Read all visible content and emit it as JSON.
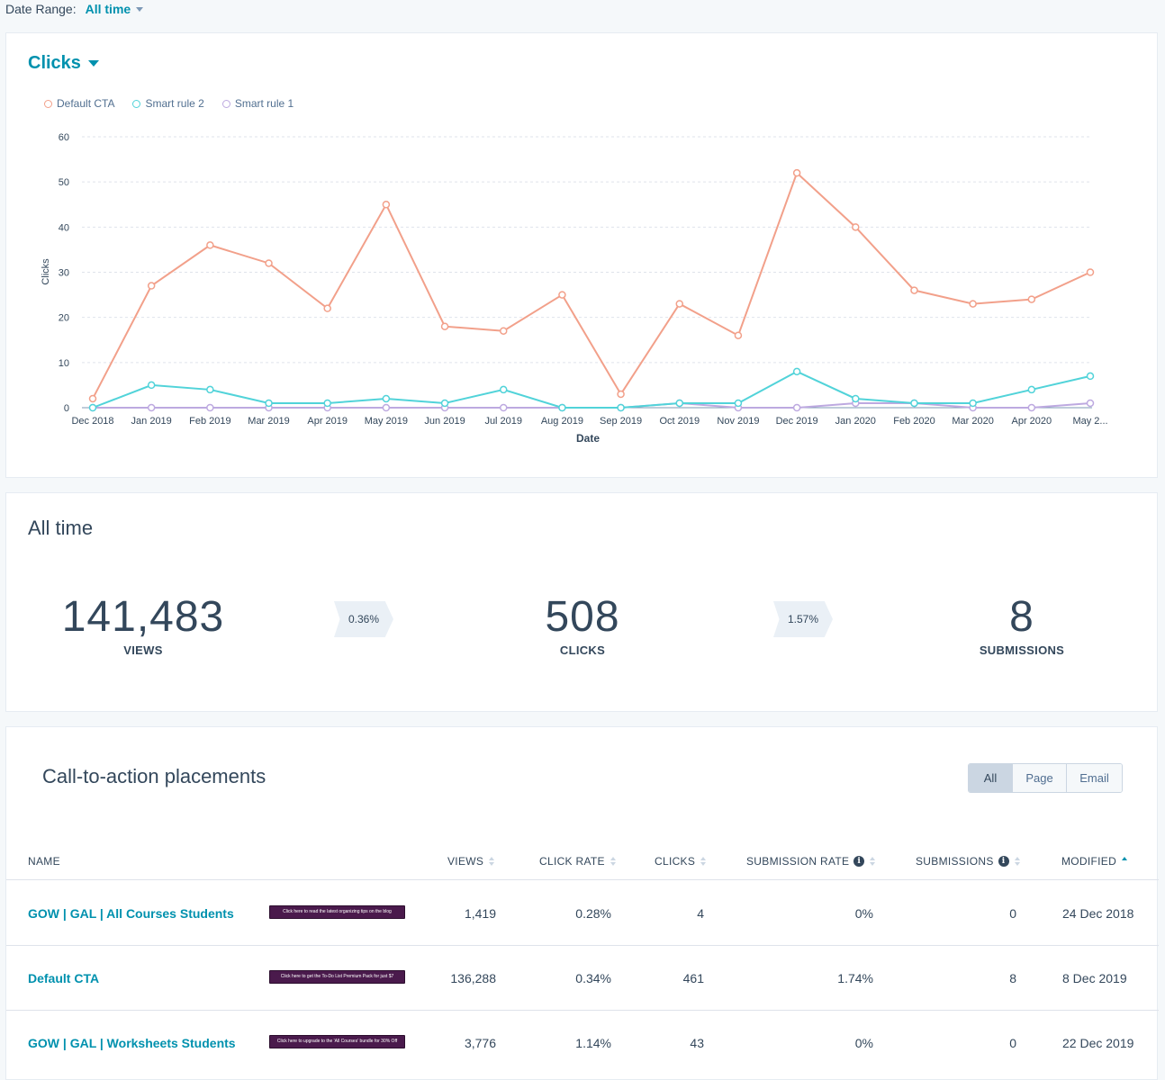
{
  "header": {
    "date_range_label": "Date Range:",
    "date_range_value": "All time"
  },
  "chart_card": {
    "metric": "Clicks"
  },
  "chart_data": {
    "type": "line",
    "x": [
      "Dec 2018",
      "Jan 2019",
      "Feb 2019",
      "Mar 2019",
      "Apr 2019",
      "May 2019",
      "Jun 2019",
      "Jul 2019",
      "Aug 2019",
      "Sep 2019",
      "Oct 2019",
      "Nov 2019",
      "Dec 2019",
      "Jan 2020",
      "Feb 2020",
      "Mar 2020",
      "Apr 2020",
      "May 2..."
    ],
    "series": [
      {
        "name": "Default CTA",
        "color": "#f2a08a",
        "values": [
          2,
          27,
          36,
          32,
          22,
          45,
          18,
          17,
          25,
          3,
          23,
          16,
          52,
          40,
          26,
          23,
          24,
          30
        ]
      },
      {
        "name": "Smart rule 2",
        "color": "#51d3d9",
        "values": [
          0,
          5,
          4,
          1,
          1,
          2,
          1,
          4,
          0,
          0,
          1,
          1,
          8,
          2,
          1,
          1,
          4,
          7
        ]
      },
      {
        "name": "Smart rule 1",
        "color": "#bda9e0",
        "values": [
          0,
          0,
          0,
          0,
          0,
          0,
          0,
          0,
          0,
          0,
          1,
          0,
          0,
          1,
          1,
          0,
          0,
          1
        ]
      }
    ],
    "yticks": [
      0,
      10,
      20,
      30,
      40,
      50,
      60
    ],
    "ylim": [
      0,
      60
    ],
    "xlabel": "Date",
    "ylabel": "Clicks",
    "legend": "top-left",
    "grid": true
  },
  "stats": {
    "title": "All time",
    "views": {
      "value": "141,483",
      "label": "VIEWS"
    },
    "clicks": {
      "value": "508",
      "label": "CLICKS"
    },
    "submissions": {
      "value": "8",
      "label": "SUBMISSIONS"
    },
    "view_to_click_rate": "0.36%",
    "click_to_submission_rate": "1.57%"
  },
  "placements": {
    "title": "Call-to-action placements",
    "filters": [
      "All",
      "Page",
      "Email"
    ],
    "columns": [
      "NAME",
      "VIEWS",
      "CLICK RATE",
      "CLICKS",
      "SUBMISSION RATE",
      "SUBMISSIONS",
      "MODIFIED"
    ],
    "rows": [
      {
        "name": "GOW | GAL | All Courses Students",
        "thumb": "Click here to read the latest organizing tips on the blog",
        "views": "1,419",
        "click_rate": "0.28%",
        "clicks": "4",
        "submission_rate": "0%",
        "submissions": "0",
        "modified": "24 Dec 2018"
      },
      {
        "name": "Default CTA",
        "thumb": "Click here to get the To-Do List Premium Pack for just $7",
        "views": "136,288",
        "click_rate": "0.34%",
        "clicks": "461",
        "submission_rate": "1.74%",
        "submissions": "8",
        "modified": "8 Dec 2019"
      },
      {
        "name": "GOW | GAL | Worksheets Students",
        "thumb": "Click here to upgrade to the 'All Courses' bundle for 30% Off",
        "views": "3,776",
        "click_rate": "1.14%",
        "clicks": "43",
        "submission_rate": "0%",
        "submissions": "0",
        "modified": "22 Dec 2019"
      }
    ]
  }
}
